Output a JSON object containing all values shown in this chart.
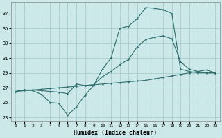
{
  "xlabel": "Humidex (Indice chaleur)",
  "xlim": [
    -0.5,
    23.5
  ],
  "ylim": [
    22.5,
    38.5
  ],
  "yticks": [
    23,
    25,
    27,
    29,
    31,
    33,
    35,
    37
  ],
  "xticks": [
    0,
    1,
    2,
    3,
    4,
    5,
    6,
    7,
    8,
    9,
    10,
    11,
    12,
    13,
    14,
    15,
    16,
    17,
    18,
    19,
    20,
    21,
    22,
    23
  ],
  "bg_color": "#cce8e8",
  "grid_color": "#a8cccc",
  "line_color": "#2d6e6e",
  "line1_x": [
    0,
    1,
    2,
    3,
    4,
    5,
    6,
    7,
    8,
    9,
    10,
    11,
    12,
    13,
    14,
    15,
    16,
    17,
    18,
    19,
    20,
    21,
    22,
    23
  ],
  "line1_y": [
    26.5,
    26.7,
    26.6,
    26.1,
    25.0,
    24.9,
    23.3,
    24.4,
    26.0,
    27.3,
    29.5,
    31.0,
    35.0,
    35.3,
    36.3,
    37.8,
    37.7,
    37.5,
    37.0,
    29.5,
    29.2,
    29.0,
    29.0,
    29.0
  ],
  "line2_x": [
    0,
    1,
    2,
    3,
    4,
    5,
    6,
    7,
    8,
    9,
    10,
    11,
    12,
    13,
    14,
    15,
    16,
    17,
    18,
    19,
    20,
    21,
    22,
    23
  ],
  "line2_y": [
    26.5,
    26.7,
    26.7,
    26.6,
    26.5,
    26.4,
    26.2,
    27.5,
    27.3,
    27.4,
    28.5,
    29.2,
    30.1,
    30.8,
    32.5,
    33.5,
    33.8,
    34.0,
    33.6,
    30.5,
    29.5,
    29.2,
    29.0,
    29.0
  ],
  "line3_x": [
    0,
    1,
    2,
    3,
    4,
    5,
    6,
    7,
    8,
    9,
    10,
    11,
    12,
    13,
    14,
    15,
    16,
    17,
    18,
    19,
    20,
    21,
    22,
    23
  ],
  "line3_y": [
    26.5,
    26.6,
    26.7,
    26.8,
    26.9,
    27.0,
    27.1,
    27.2,
    27.3,
    27.4,
    27.5,
    27.6,
    27.7,
    27.8,
    27.9,
    28.0,
    28.2,
    28.4,
    28.6,
    28.8,
    29.0,
    29.2,
    29.4,
    29.0
  ]
}
